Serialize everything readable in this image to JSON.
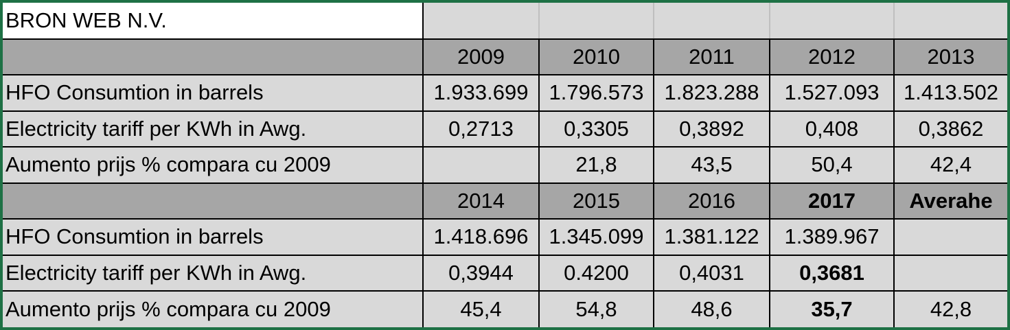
{
  "table": {
    "title": "BRON WEB N.V.",
    "rows": [
      [
        null,
        "2009",
        "2010",
        "2011",
        "2012",
        "2013"
      ],
      [
        "HFO Consumtion in barrels",
        "1.933.699",
        "1.796.573",
        "1.823.288",
        "1.527.093",
        "1.413.502"
      ],
      [
        "Electricity tariff per KWh in Awg.",
        "0,2713",
        "0,3305",
        "0,3892",
        "0,408",
        "0,3862"
      ],
      [
        "Aumento prijs  % compara cu 2009",
        null,
        "21,8",
        "43,5",
        "50,4",
        "42,4"
      ],
      [
        null,
        "2014",
        "2015",
        "2016",
        "2017",
        "Averahe"
      ],
      [
        "HFO Consumtion in barrels",
        "1.418.696",
        "1.345.099",
        "1.381.122",
        "1.389.967",
        null
      ],
      [
        "Electricity tariff per KWh in Awg.",
        "0,3944",
        "0.4200",
        "0,4031",
        "0,3681",
        null
      ],
      [
        "Aumento prijs  % compara cu 2009",
        "45,4",
        "54,8",
        "48,6",
        "35,7",
        "42,8"
      ]
    ]
  }
}
